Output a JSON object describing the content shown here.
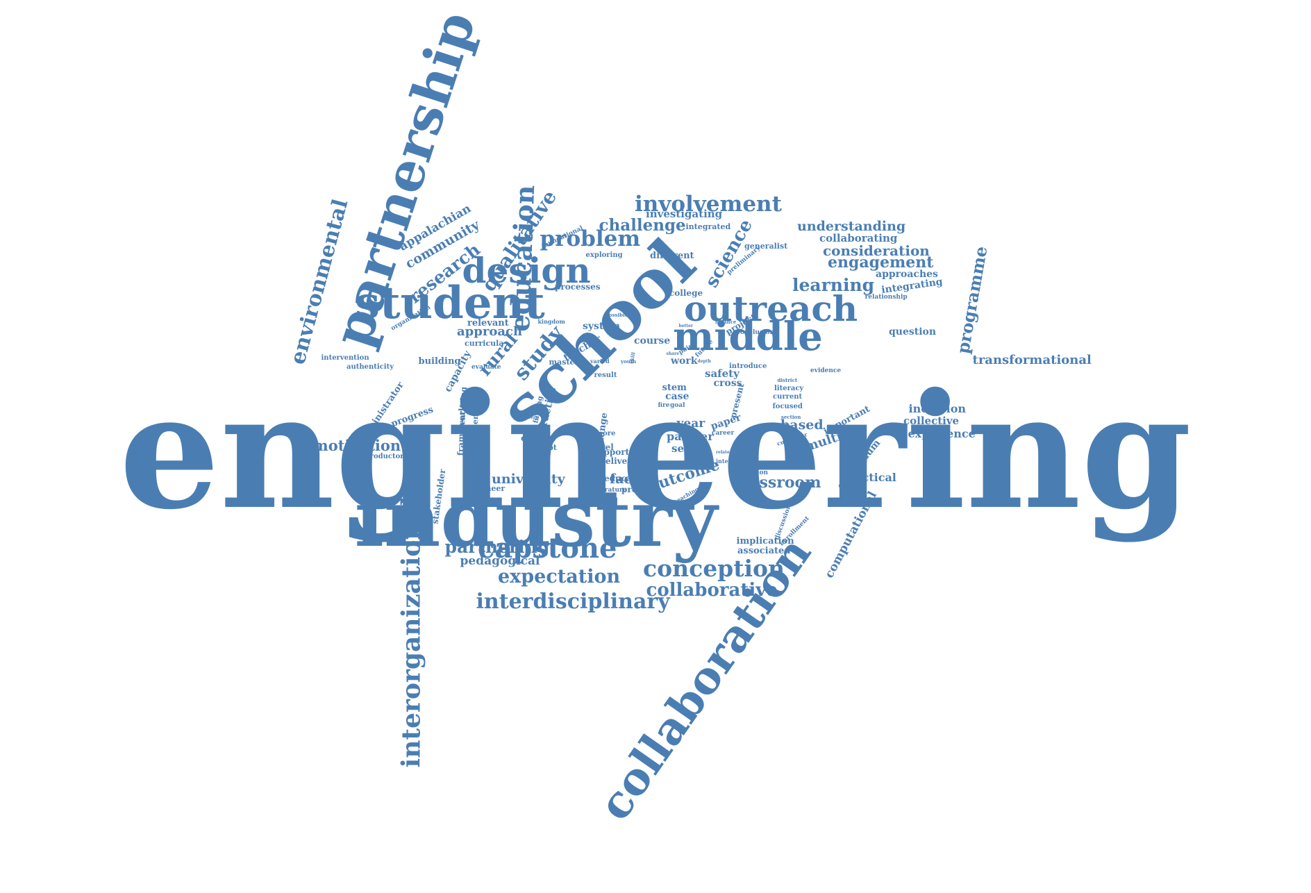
{
  "color": "#4a7eb3",
  "words": [
    {
      "text": "engineering"
    },
    {
      "text": "industry"
    },
    {
      "text": "school"
    },
    {
      "text": "partnership"
    },
    {
      "text": "collaboration"
    },
    {
      "text": "student"
    },
    {
      "text": "middle"
    },
    {
      "text": "outreach"
    },
    {
      "text": "design"
    },
    {
      "text": "capstone"
    },
    {
      "text": "education"
    },
    {
      "text": "interorganizational"
    },
    {
      "text": "environmental"
    },
    {
      "text": "involvement"
    },
    {
      "text": "problem"
    },
    {
      "text": "qualitative"
    },
    {
      "text": "conception"
    },
    {
      "text": "interdisciplinary"
    },
    {
      "text": "expectation"
    },
    {
      "text": "collaborative"
    },
    {
      "text": "partnering"
    },
    {
      "text": "research"
    },
    {
      "text": "programme"
    },
    {
      "text": "science"
    },
    {
      "text": "study"
    },
    {
      "text": "rural"
    },
    {
      "text": "learning"
    },
    {
      "text": "engagement"
    },
    {
      "text": "consideration"
    },
    {
      "text": "challenge"
    },
    {
      "text": "understanding"
    },
    {
      "text": "community"
    },
    {
      "text": "appalachian"
    },
    {
      "text": "motivation"
    },
    {
      "text": "classroom"
    },
    {
      "text": "outcome"
    },
    {
      "text": "university"
    },
    {
      "text": "factor"
    },
    {
      "text": "computational"
    },
    {
      "text": "transformational"
    },
    {
      "text": "pedagogical"
    },
    {
      "text": "approach"
    },
    {
      "text": "multiple"
    },
    {
      "text": "investigating"
    },
    {
      "text": "collaborating"
    },
    {
      "text": "approaches"
    },
    {
      "text": "integrating"
    },
    {
      "text": "question"
    },
    {
      "text": "inclusion"
    },
    {
      "text": "collective"
    },
    {
      "text": "experience"
    },
    {
      "text": "based"
    },
    {
      "text": "practical"
    },
    {
      "text": "curriculum"
    },
    {
      "text": "important"
    },
    {
      "text": "year"
    },
    {
      "text": "partner"
    },
    {
      "text": "sector"
    },
    {
      "text": "paper"
    },
    {
      "text": "stem"
    },
    {
      "text": "case"
    },
    {
      "text": "safety"
    },
    {
      "text": "cross"
    },
    {
      "text": "course"
    },
    {
      "text": "work"
    },
    {
      "text": "system"
    },
    {
      "text": "teacher"
    },
    {
      "text": "relevant"
    },
    {
      "text": "curricula"
    },
    {
      "text": "building"
    },
    {
      "text": "capacity"
    },
    {
      "text": "framework"
    },
    {
      "text": "academia"
    },
    {
      "text": "identifying"
    },
    {
      "text": "administrator"
    },
    {
      "text": "progress"
    },
    {
      "text": "introductory"
    },
    {
      "text": "stakeholder"
    },
    {
      "text": "engineer"
    },
    {
      "text": "literature"
    },
    {
      "text": "program"
    },
    {
      "text": "educator"
    },
    {
      "text": "delivery"
    },
    {
      "text": "support"
    },
    {
      "text": "implication"
    },
    {
      "text": "associated"
    },
    {
      "text": "context"
    },
    {
      "text": "concept"
    },
    {
      "text": "practice"
    },
    {
      "text": "finding"
    },
    {
      "text": "general"
    },
    {
      "text": "change"
    },
    {
      "text": "level"
    },
    {
      "text": "more"
    },
    {
      "text": "result"
    },
    {
      "text": "master"
    },
    {
      "text": "evaluate"
    },
    {
      "text": "processes"
    },
    {
      "text": "college"
    },
    {
      "text": "different"
    },
    {
      "text": "exploring"
    },
    {
      "text": "integrated"
    },
    {
      "text": "generalist"
    },
    {
      "text": "preliminary"
    },
    {
      "text": "relationship"
    },
    {
      "text": "project"
    },
    {
      "text": "conclusion"
    },
    {
      "text": "introduce"
    },
    {
      "text": "evidence"
    },
    {
      "text": "literacy"
    },
    {
      "text": "current"
    },
    {
      "text": "focused"
    },
    {
      "text": "present"
    },
    {
      "text": "career"
    },
    {
      "text": "single"
    },
    {
      "text": "curricular"
    },
    {
      "text": "discussion"
    },
    {
      "text": "enrollment"
    },
    {
      "text": "interview"
    },
    {
      "text": "dimension"
    },
    {
      "text": "teaching"
    },
    {
      "text": "foundational"
    },
    {
      "text": "organization"
    },
    {
      "text": "intervention"
    },
    {
      "text": "authenticity"
    },
    {
      "text": "kingdom"
    },
    {
      "text": "possible"
    },
    {
      "text": "varied"
    },
    {
      "text": "youth"
    },
    {
      "text": "balance"
    },
    {
      "text": "district"
    },
    {
      "text": "section"
    },
    {
      "text": "related"
    },
    {
      "text": "goal"
    },
    {
      "text": "fire"
    },
    {
      "text": "skill"
    },
    {
      "text": "point"
    },
    {
      "text": "future"
    },
    {
      "text": "pattern"
    },
    {
      "text": "external"
    },
    {
      "text": "share"
    },
    {
      "text": "depth"
    },
    {
      "text": "better"
    }
  ]
}
